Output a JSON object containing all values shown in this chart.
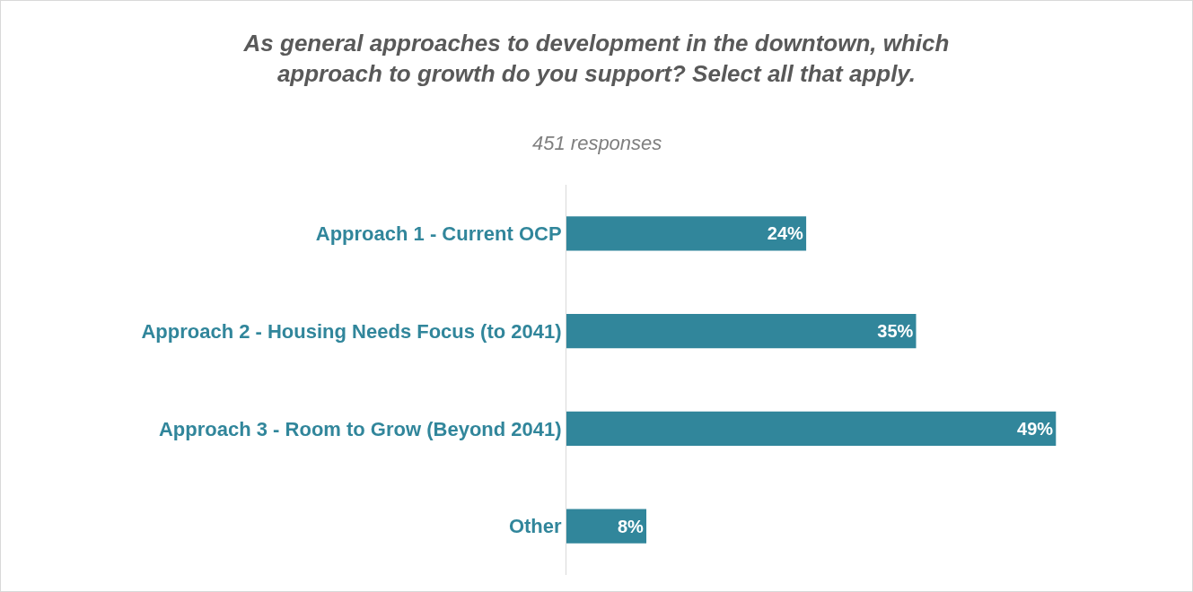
{
  "chart_data": {
    "type": "bar",
    "orientation": "horizontal",
    "title": "As general approaches to development in the downtown, which approach to growth do you support? Select all that apply.",
    "subtitle": "451 responses",
    "categories": [
      "Approach 1 - Current OCP",
      "Approach 2 - Housing Needs Focus (to 2041)",
      "Approach 3 - Room to Grow (Beyond 2041)",
      "Other"
    ],
    "values": [
      24,
      35,
      49,
      8
    ],
    "value_labels": [
      "24%",
      "35%",
      "49%",
      "8%"
    ],
    "color": "#31869b",
    "grid": false,
    "legend": false
  }
}
